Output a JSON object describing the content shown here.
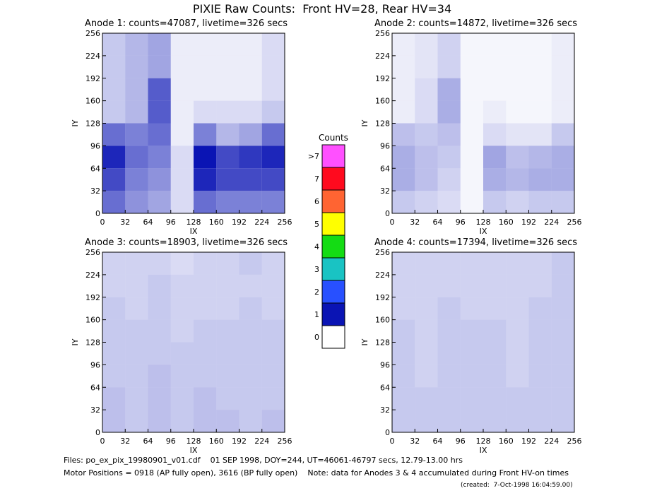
{
  "title": "PIXIE Raw Counts:  Front HV=28, Rear HV=34",
  "colorbar": {
    "title": "Counts",
    "labels": [
      "0",
      "1",
      "2",
      "3",
      "4",
      "5",
      "6",
      "7",
      ">7"
    ],
    "colors": [
      "#ffffff",
      "#0a14b4",
      "#2850ff",
      "#19c3c3",
      "#14dc14",
      "#ffff00",
      "#ff6432",
      "#ff0a1e",
      "#ff50ff"
    ]
  },
  "footer": [
    "Files: po_ex_pix_19980901_v01.cdf    01 SEP 1998, DOY=244, UT=46061-46797 secs, 12.79-13.00 hrs",
    "Motor Positions = 0918 (AP fully open), 3616 (BP fully open)    Note: data for Anodes 3 & 4 accumulated during Front HV-on times",
    "(created:  7-Oct-1998 16:04:59.00)"
  ],
  "chart_data": [
    {
      "type": "heatmap",
      "title": "Anode 1: counts=47087, livetime=326 secs",
      "xlabel": "IX",
      "ylabel": "IY",
      "color": "#0a14b4",
      "xlim": [
        0,
        256
      ],
      "ylim": [
        0,
        256
      ],
      "xticks": [
        0,
        32,
        64,
        96,
        128,
        160,
        192,
        224,
        256
      ],
      "yticks": [
        0,
        32,
        64,
        96,
        128,
        160,
        192,
        224,
        256
      ],
      "x_bins": [
        0,
        32,
        64,
        96,
        128,
        160,
        192,
        224,
        256
      ],
      "y_bins": [
        0,
        32,
        64,
        96,
        128,
        160,
        192,
        224,
        256
      ],
      "values": [
        [
          0.8,
          0.6,
          0.5,
          0.2,
          0.8,
          0.7,
          0.7,
          0.7
        ],
        [
          1.0,
          0.7,
          0.6,
          0.2,
          1.2,
          1.0,
          1.0,
          1.0
        ],
        [
          1.2,
          0.8,
          0.7,
          0.2,
          1.3,
          1.0,
          1.1,
          1.2
        ],
        [
          0.8,
          0.7,
          0.8,
          0.1,
          0.7,
          0.4,
          0.5,
          0.8
        ],
        [
          0.3,
          0.4,
          0.9,
          0.1,
          0.2,
          0.2,
          0.2,
          0.3
        ],
        [
          0.3,
          0.4,
          0.9,
          0.1,
          0.1,
          0.1,
          0.1,
          0.2
        ],
        [
          0.3,
          0.4,
          0.5,
          0.1,
          0.1,
          0.1,
          0.1,
          0.2
        ],
        [
          0.3,
          0.4,
          0.5,
          0.1,
          0.1,
          0.1,
          0.1,
          0.2
        ]
      ]
    },
    {
      "type": "heatmap",
      "title": "Anode 2: counts=14872, livetime=326 secs",
      "xlabel": "IX",
      "ylabel": "IY",
      "color": "#0a14b4",
      "xlim": [
        0,
        256
      ],
      "ylim": [
        0,
        256
      ],
      "xticks": [
        0,
        32,
        64,
        96,
        128,
        160,
        192,
        224,
        256
      ],
      "yticks": [
        0,
        32,
        64,
        96,
        128,
        160,
        192,
        224,
        256
      ],
      "x_bins": [
        0,
        32,
        64,
        96,
        128,
        160,
        192,
        224,
        256
      ],
      "y_bins": [
        0,
        32,
        64,
        96,
        128,
        160,
        192,
        224,
        256
      ],
      "values": [
        [
          0.3,
          0.25,
          0.2,
          0.05,
          0.3,
          0.25,
          0.3,
          0.3
        ],
        [
          0.45,
          0.35,
          0.25,
          0.05,
          0.45,
          0.4,
          0.45,
          0.45
        ],
        [
          0.45,
          0.35,
          0.3,
          0.05,
          0.5,
          0.35,
          0.4,
          0.45
        ],
        [
          0.35,
          0.3,
          0.35,
          0.05,
          0.2,
          0.15,
          0.15,
          0.3
        ],
        [
          0.1,
          0.2,
          0.45,
          0.05,
          0.1,
          0.05,
          0.05,
          0.1
        ],
        [
          0.1,
          0.2,
          0.45,
          0.05,
          0.05,
          0.05,
          0.05,
          0.1
        ],
        [
          0.1,
          0.15,
          0.25,
          0.05,
          0.05,
          0.05,
          0.05,
          0.1
        ],
        [
          0.1,
          0.15,
          0.25,
          0.05,
          0.05,
          0.05,
          0.05,
          0.1
        ]
      ]
    },
    {
      "type": "heatmap",
      "title": "Anode 3: counts=18903, livetime=326 secs",
      "xlabel": "IX",
      "ylabel": "IY",
      "color": "#0a14b4",
      "xlim": [
        0,
        256
      ],
      "ylim": [
        0,
        256
      ],
      "xticks": [
        0,
        32,
        64,
        96,
        128,
        160,
        192,
        224,
        256
      ],
      "yticks": [
        0,
        32,
        64,
        96,
        128,
        160,
        192,
        224,
        256
      ],
      "x_bins": [
        0,
        32,
        64,
        96,
        128,
        160,
        192,
        224,
        256
      ],
      "y_bins": [
        0,
        32,
        64,
        96,
        128,
        160,
        192,
        224,
        256
      ],
      "values": [
        [
          0.35,
          0.3,
          0.35,
          0.3,
          0.35,
          0.35,
          0.3,
          0.35
        ],
        [
          0.35,
          0.3,
          0.35,
          0.3,
          0.35,
          0.3,
          0.3,
          0.3
        ],
        [
          0.3,
          0.3,
          0.35,
          0.3,
          0.3,
          0.3,
          0.3,
          0.3
        ],
        [
          0.3,
          0.3,
          0.3,
          0.3,
          0.3,
          0.3,
          0.3,
          0.3
        ],
        [
          0.3,
          0.3,
          0.3,
          0.25,
          0.3,
          0.3,
          0.3,
          0.3
        ],
        [
          0.3,
          0.25,
          0.3,
          0.25,
          0.25,
          0.25,
          0.3,
          0.25
        ],
        [
          0.25,
          0.25,
          0.3,
          0.25,
          0.25,
          0.25,
          0.25,
          0.25
        ],
        [
          0.25,
          0.25,
          0.25,
          0.2,
          0.25,
          0.25,
          0.3,
          0.25
        ]
      ]
    },
    {
      "type": "heatmap",
      "title": "Anode 4: counts=17394, livetime=326 secs",
      "xlabel": "IX",
      "ylabel": "IY",
      "color": "#0a14b4",
      "xlim": [
        0,
        256
      ],
      "ylim": [
        0,
        256
      ],
      "xticks": [
        0,
        32,
        64,
        96,
        128,
        160,
        192,
        224,
        256
      ],
      "yticks": [
        0,
        32,
        64,
        96,
        128,
        160,
        192,
        224,
        256
      ],
      "x_bins": [
        0,
        32,
        64,
        96,
        128,
        160,
        192,
        224,
        256
      ],
      "y_bins": [
        0,
        32,
        64,
        96,
        128,
        160,
        192,
        224,
        256
      ],
      "values": [
        [
          0.3,
          0.3,
          0.3,
          0.3,
          0.3,
          0.3,
          0.3,
          0.3
        ],
        [
          0.3,
          0.3,
          0.3,
          0.3,
          0.3,
          0.3,
          0.3,
          0.3
        ],
        [
          0.3,
          0.25,
          0.3,
          0.3,
          0.3,
          0.25,
          0.3,
          0.3
        ],
        [
          0.3,
          0.25,
          0.3,
          0.3,
          0.3,
          0.25,
          0.3,
          0.3
        ],
        [
          0.3,
          0.25,
          0.3,
          0.3,
          0.3,
          0.25,
          0.3,
          0.3
        ],
        [
          0.25,
          0.25,
          0.3,
          0.25,
          0.25,
          0.25,
          0.3,
          0.3
        ],
        [
          0.25,
          0.25,
          0.25,
          0.25,
          0.25,
          0.25,
          0.25,
          0.3
        ],
        [
          0.25,
          0.25,
          0.25,
          0.25,
          0.25,
          0.25,
          0.25,
          0.3
        ]
      ]
    }
  ]
}
